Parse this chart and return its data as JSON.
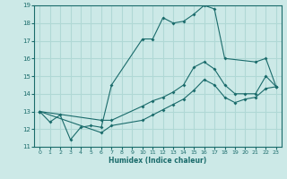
{
  "xlabel": "Humidex (Indice chaleur)",
  "xlim": [
    -0.5,
    23.5
  ],
  "ylim": [
    11,
    19
  ],
  "yticks": [
    11,
    12,
    13,
    14,
    15,
    16,
    17,
    18,
    19
  ],
  "xticks": [
    0,
    1,
    2,
    3,
    4,
    5,
    6,
    7,
    8,
    9,
    10,
    11,
    12,
    13,
    14,
    15,
    16,
    17,
    18,
    19,
    20,
    21,
    22,
    23
  ],
  "background_color": "#cce9e7",
  "grid_color": "#b0d8d5",
  "line_color": "#1a6b6b",
  "line1_x": [
    0,
    1,
    2,
    3,
    4,
    5,
    6,
    7,
    10,
    11,
    12,
    13,
    14,
    15,
    16,
    17,
    18,
    21,
    22,
    23
  ],
  "line1_y": [
    13.0,
    12.4,
    12.8,
    11.4,
    12.1,
    12.2,
    12.1,
    14.5,
    17.1,
    17.1,
    18.3,
    18.0,
    18.1,
    18.5,
    19.0,
    18.8,
    16.0,
    15.8,
    16.0,
    14.4
  ],
  "line2_x": [
    0,
    6,
    7,
    10,
    11,
    12,
    13,
    14,
    15,
    16,
    17,
    18,
    19,
    20,
    21,
    22,
    23
  ],
  "line2_y": [
    13.0,
    12.5,
    12.5,
    13.3,
    13.6,
    13.8,
    14.1,
    14.5,
    15.5,
    15.8,
    15.4,
    14.5,
    14.0,
    14.0,
    14.0,
    15.0,
    14.4
  ],
  "line3_x": [
    0,
    6,
    7,
    10,
    11,
    12,
    13,
    14,
    15,
    16,
    17,
    18,
    19,
    20,
    21,
    22,
    23
  ],
  "line3_y": [
    13.0,
    11.8,
    12.2,
    12.5,
    12.8,
    13.1,
    13.4,
    13.7,
    14.2,
    14.8,
    14.5,
    13.8,
    13.5,
    13.7,
    13.8,
    14.3,
    14.4
  ]
}
